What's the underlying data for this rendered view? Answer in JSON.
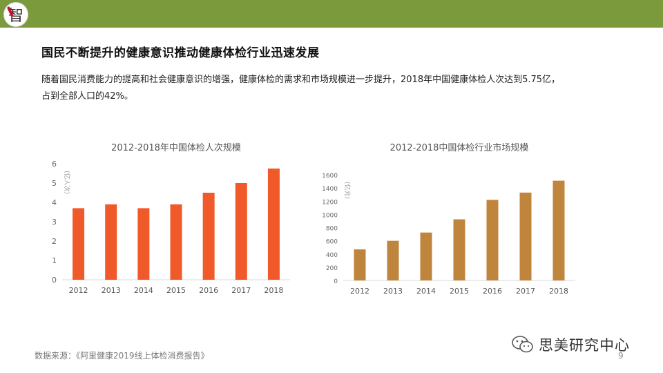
{
  "header": {
    "logo_char": "智",
    "bar_color": "#7a9a3c"
  },
  "slide": {
    "title": "国民不断提升的健康意识推动健康体检行业迅速发展",
    "description": "随着国民消费能力的提高和社会健康意识的增强，健康体检的需求和市场规模进一步提升，2018年中国健康体检人次达到5.75亿，占到全部人口的42%。"
  },
  "chart_data": [
    {
      "type": "bar",
      "title": "2012-2018年中国体检人次规模",
      "ylabel": "(亿人次)",
      "xlabel": "",
      "categories": [
        "2012",
        "2013",
        "2014",
        "2015",
        "2016",
        "2017",
        "2018"
      ],
      "values": [
        3.7,
        3.9,
        3.7,
        3.9,
        4.5,
        5.0,
        5.75
      ],
      "ylim": [
        0,
        6
      ],
      "yticks": [
        0,
        1,
        2,
        3,
        4,
        5,
        6
      ],
      "color": "#f05a2a",
      "grid": false
    },
    {
      "type": "bar",
      "title": "2012-2018中国体检行业市场规模",
      "ylabel": "(亿元)",
      "xlabel": "",
      "categories": [
        "2012",
        "2013",
        "2014",
        "2015",
        "2016",
        "2017",
        "2018"
      ],
      "values": [
        470,
        600,
        725,
        925,
        1220,
        1330,
        1510
      ],
      "ylim": [
        0,
        1600
      ],
      "yticks": [
        0,
        200,
        400,
        600,
        800,
        1000,
        1200,
        1400,
        1600
      ],
      "color": "#c0853c",
      "grid": false
    }
  ],
  "footer": {
    "source": "数据来源：《阿里健康2019线上体检消费报告》",
    "wechat_name": "思美研究中心",
    "wechat_icon": "wechat-icon",
    "page_number": "9"
  }
}
